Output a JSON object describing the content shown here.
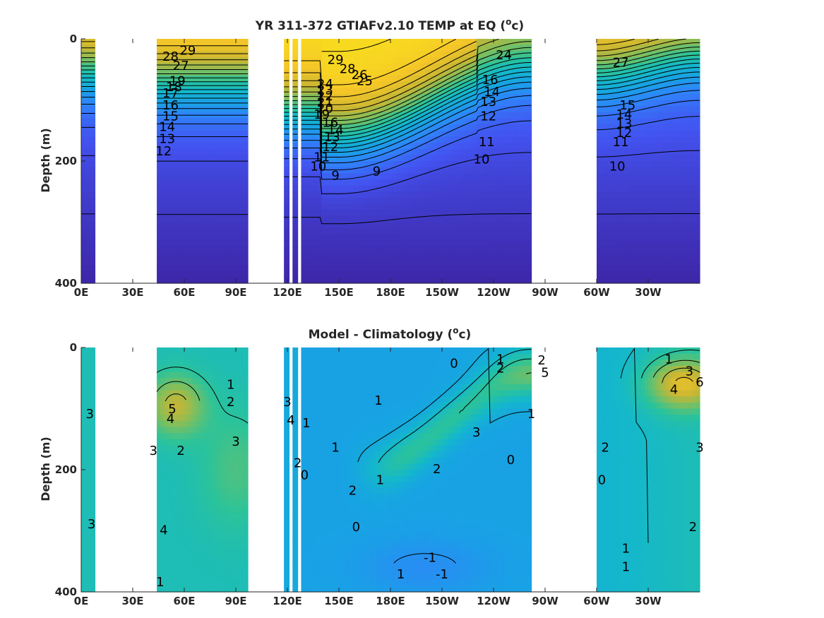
{
  "chart_data": [
    {
      "type": "heatmap",
      "title_main": "YR 311-372 GTIAFv2.10 TEMP at EQ (",
      "title_sup": "o",
      "title_end": "c)",
      "ylabel": "Depth (m)",
      "ylim": [
        0,
        400
      ],
      "yticks": [
        "0",
        "200",
        "400"
      ],
      "xticks": [
        "0E",
        "30E",
        "60E",
        "90E",
        "120E",
        "150E",
        "180E",
        "150W",
        "120W",
        "90W",
        "60W",
        "30W"
      ],
      "xlim_degrees_east": [
        0,
        360
      ],
      "colormap": [
        "#3e26a8",
        "#4353f0",
        "#2f84fa",
        "#17a4e3",
        "#14b8ca",
        "#2bc39a",
        "#7cbf5f",
        "#c9b633",
        "#f5c628",
        "#f9e61b"
      ],
      "valid_longitude_segments": [
        [
          0,
          8
        ],
        [
          44,
          97
        ],
        [
          118,
          121
        ],
        [
          123,
          126
        ],
        [
          128,
          262
        ],
        [
          300,
          360
        ]
      ],
      "contour_levels": [
        9,
        10,
        11,
        12,
        13,
        14,
        15,
        16,
        17,
        18,
        19,
        20,
        21,
        22,
        23,
        24,
        25,
        26,
        27,
        28,
        29
      ],
      "contour_labels": [
        {
          "text": "29",
          "lon": 62,
          "depth": 20
        },
        {
          "text": "28",
          "lon": 52,
          "depth": 30
        },
        {
          "text": "27",
          "lon": 58,
          "depth": 45
        },
        {
          "text": "19",
          "lon": 56,
          "depth": 70
        },
        {
          "text": "18",
          "lon": 54,
          "depth": 80
        },
        {
          "text": "17",
          "lon": 52,
          "depth": 90
        },
        {
          "text": "16",
          "lon": 52,
          "depth": 110
        },
        {
          "text": "15",
          "lon": 52,
          "depth": 128
        },
        {
          "text": "14",
          "lon": 50,
          "depth": 145
        },
        {
          "text": "13",
          "lon": 50,
          "depth": 165
        },
        {
          "text": "12",
          "lon": 48,
          "depth": 185
        },
        {
          "text": "29",
          "lon": 148,
          "depth": 35
        },
        {
          "text": "28",
          "lon": 155,
          "depth": 50
        },
        {
          "text": "26",
          "lon": 162,
          "depth": 60
        },
        {
          "text": "25",
          "lon": 165,
          "depth": 70
        },
        {
          "text": "24",
          "lon": 142,
          "depth": 75
        },
        {
          "text": "23",
          "lon": 142,
          "depth": 85
        },
        {
          "text": "22",
          "lon": 142,
          "depth": 95
        },
        {
          "text": "21",
          "lon": 142,
          "depth": 105
        },
        {
          "text": "20",
          "lon": 142,
          "depth": 115
        },
        {
          "text": "19",
          "lon": 140,
          "depth": 125
        },
        {
          "text": "16",
          "lon": 145,
          "depth": 138
        },
        {
          "text": "14",
          "lon": 148,
          "depth": 150
        },
        {
          "text": "13",
          "lon": 146,
          "depth": 162
        },
        {
          "text": "12",
          "lon": 145,
          "depth": 178
        },
        {
          "text": "11",
          "lon": 140,
          "depth": 195
        },
        {
          "text": "10",
          "lon": 138,
          "depth": 210
        },
        {
          "text": "9",
          "lon": 148,
          "depth": 225
        },
        {
          "text": "9",
          "lon": 172,
          "depth": 218
        },
        {
          "text": "10",
          "lon": 233,
          "depth": 198
        },
        {
          "text": "11",
          "lon": 236,
          "depth": 170
        },
        {
          "text": "12",
          "lon": 237,
          "depth": 128
        },
        {
          "text": "13",
          "lon": 237,
          "depth": 104
        },
        {
          "text": "14",
          "lon": 239,
          "depth": 88
        },
        {
          "text": "16",
          "lon": 238,
          "depth": 68
        },
        {
          "text": "24",
          "lon": 246,
          "depth": 28
        },
        {
          "text": "27",
          "lon": 314,
          "depth": 40
        },
        {
          "text": "15",
          "lon": 318,
          "depth": 110
        },
        {
          "text": "14",
          "lon": 316,
          "depth": 125
        },
        {
          "text": "13",
          "lon": 316,
          "depth": 140
        },
        {
          "text": "12",
          "lon": 316,
          "depth": 155
        },
        {
          "text": "11",
          "lon": 314,
          "depth": 170
        },
        {
          "text": "10",
          "lon": 312,
          "depth": 210
        }
      ]
    },
    {
      "type": "heatmap",
      "title_main": "Model - Climatology (",
      "title_sup": "o",
      "title_end": "c)",
      "ylabel": "Depth (m)",
      "ylim": [
        0,
        400
      ],
      "yticks": [
        "0",
        "200",
        "400"
      ],
      "xticks": [
        "0E",
        "30E",
        "60E",
        "90E",
        "120E",
        "150E",
        "180E",
        "150W",
        "120W",
        "90W",
        "60W",
        "30W"
      ],
      "xlim_degrees_east": [
        0,
        360
      ],
      "valid_longitude_segments": [
        [
          0,
          8
        ],
        [
          44,
          97
        ],
        [
          118,
          121
        ],
        [
          123,
          126
        ],
        [
          128,
          262
        ],
        [
          300,
          360
        ]
      ],
      "contour_levels": [
        -1,
        0,
        1,
        2,
        3,
        4,
        5,
        6
      ],
      "contour_labels": [
        {
          "text": "1",
          "lon": 87,
          "depth": 62
        },
        {
          "text": "2",
          "lon": 87,
          "depth": 90
        },
        {
          "text": "5",
          "lon": 53,
          "depth": 102
        },
        {
          "text": "4",
          "lon": 52,
          "depth": 118
        },
        {
          "text": "3",
          "lon": 90,
          "depth": 155
        },
        {
          "text": "2",
          "lon": 58,
          "depth": 170
        },
        {
          "text": "3",
          "lon": 42,
          "depth": 170
        },
        {
          "text": "3",
          "lon": 5,
          "depth": 110
        },
        {
          "text": "3",
          "lon": 6,
          "depth": 290
        },
        {
          "text": "4",
          "lon": 48,
          "depth": 300
        },
        {
          "text": "1",
          "lon": 46,
          "depth": 385
        },
        {
          "text": "3",
          "lon": 120,
          "depth": 90
        },
        {
          "text": "4",
          "lon": 122,
          "depth": 120
        },
        {
          "text": "1",
          "lon": 131,
          "depth": 125
        },
        {
          "text": "2",
          "lon": 126,
          "depth": 190
        },
        {
          "text": "0",
          "lon": 130,
          "depth": 210
        },
        {
          "text": "1",
          "lon": 148,
          "depth": 165
        },
        {
          "text": "2",
          "lon": 158,
          "depth": 235
        },
        {
          "text": "0",
          "lon": 160,
          "depth": 295
        },
        {
          "text": "1",
          "lon": 173,
          "depth": 88
        },
        {
          "text": "1",
          "lon": 174,
          "depth": 218
        },
        {
          "text": "2",
          "lon": 207,
          "depth": 200
        },
        {
          "text": "3",
          "lon": 230,
          "depth": 140
        },
        {
          "text": "0",
          "lon": 217,
          "depth": 27
        },
        {
          "text": "1",
          "lon": 244,
          "depth": 20
        },
        {
          "text": "2",
          "lon": 244,
          "depth": 35
        },
        {
          "text": "2",
          "lon": 268,
          "depth": 22
        },
        {
          "text": "5",
          "lon": 270,
          "depth": 42
        },
        {
          "text": "1",
          "lon": 262,
          "depth": 110
        },
        {
          "text": "0",
          "lon": 250,
          "depth": 185
        },
        {
          "text": "-1",
          "lon": 203,
          "depth": 345
        },
        {
          "text": "-1",
          "lon": 210,
          "depth": 372
        },
        {
          "text": "1",
          "lon": 186,
          "depth": 372
        },
        {
          "text": "1",
          "lon": 342,
          "depth": 20
        },
        {
          "text": "3",
          "lon": 354,
          "depth": 40
        },
        {
          "text": "6",
          "lon": 360,
          "depth": 58
        },
        {
          "text": "4",
          "lon": 345,
          "depth": 70
        },
        {
          "text": "2",
          "lon": 305,
          "depth": 165
        },
        {
          "text": "0",
          "lon": 303,
          "depth": 218
        },
        {
          "text": "3",
          "lon": 360,
          "depth": 165
        },
        {
          "text": "2",
          "lon": 356,
          "depth": 295
        },
        {
          "text": "1",
          "lon": 317,
          "depth": 330
        },
        {
          "text": "1",
          "lon": 317,
          "depth": 360
        }
      ]
    }
  ]
}
